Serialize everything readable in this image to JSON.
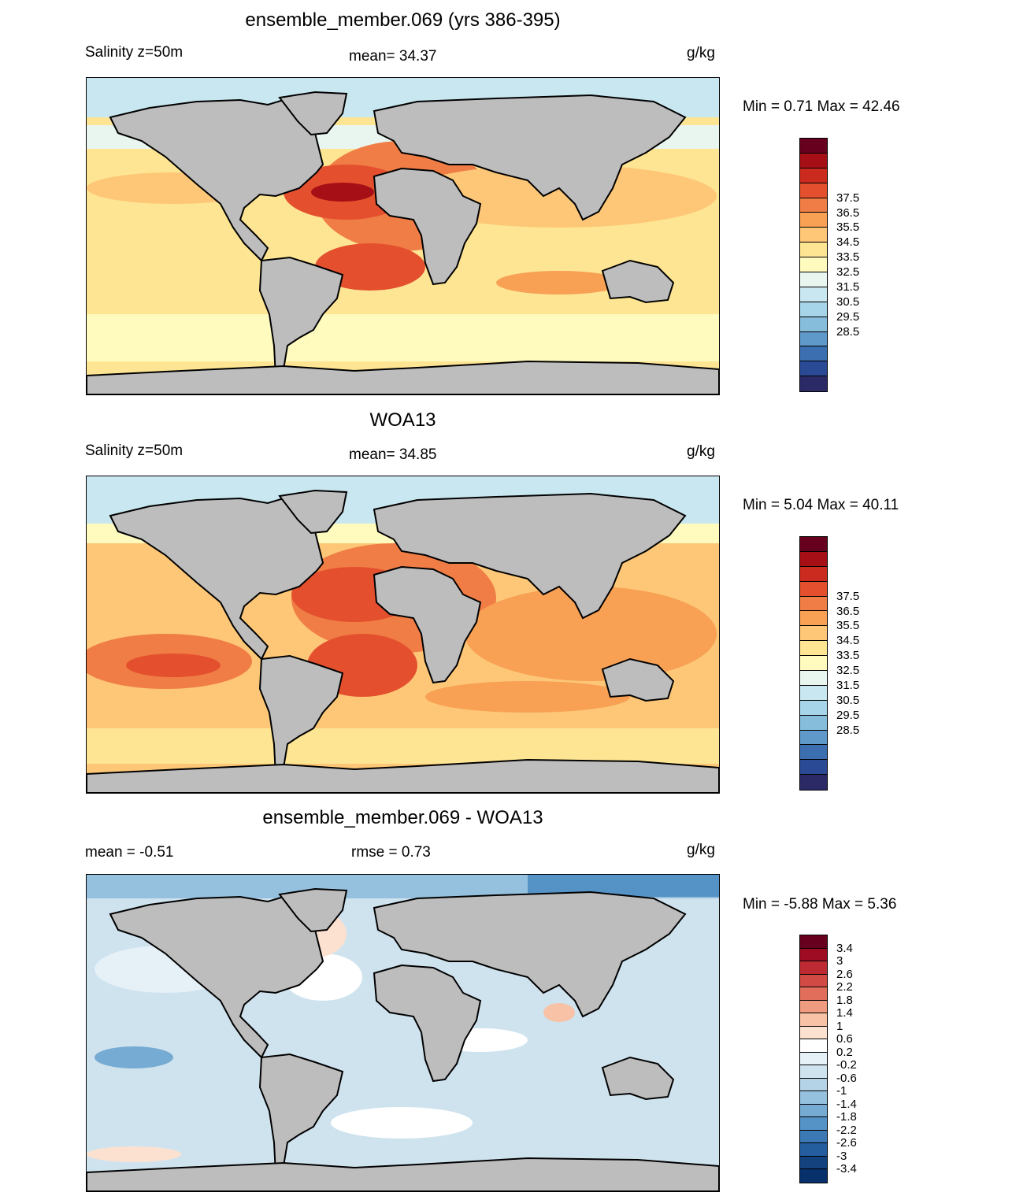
{
  "panels": [
    {
      "id": "model",
      "title": "ensemble_member.069 (yrs 386-395)",
      "left_label": "Salinity z=50m",
      "center_label": "mean=  34.37",
      "units": "g/kg",
      "minmax": "Min =   0.71 Max =  42.46",
      "colorbar": {
        "colors": [
          "#67001f",
          "#a50f15",
          "#cb2a1f",
          "#e4502e",
          "#f07d45",
          "#f8a054",
          "#fdc777",
          "#fee593",
          "#fffbbf",
          "#e9f6f0",
          "#c9e7f0",
          "#a6d4e8",
          "#86bddb",
          "#5f99c9",
          "#3c6fb0",
          "#2b4a95",
          "#2b2a66"
        ],
        "ticks": [
          "37.5",
          "36.5",
          "35.5",
          "34.5",
          "33.5",
          "32.5",
          "31.5",
          "30.5",
          "29.5",
          "28.5"
        ]
      }
    },
    {
      "id": "obs",
      "title": "WOA13",
      "left_label": "Salinity z=50m",
      "center_label": "mean=  34.85",
      "units": "g/kg",
      "minmax": "Min =   5.04 Max =  40.11",
      "colorbar": {
        "colors": [
          "#67001f",
          "#a50f15",
          "#cb2a1f",
          "#e4502e",
          "#f07d45",
          "#f8a054",
          "#fdc777",
          "#fee593",
          "#fffbbf",
          "#e9f6f0",
          "#c9e7f0",
          "#a6d4e8",
          "#86bddb",
          "#5f99c9",
          "#3c6fb0",
          "#2b4a95",
          "#2b2a66"
        ],
        "ticks": [
          "37.5",
          "36.5",
          "35.5",
          "34.5",
          "33.5",
          "32.5",
          "31.5",
          "30.5",
          "29.5",
          "28.5"
        ]
      }
    },
    {
      "id": "diff",
      "title": "ensemble_member.069 - WOA13",
      "left_label": "mean =  -0.51",
      "center_label": "rmse =   0.73",
      "units": "g/kg",
      "minmax": "Min =  -5.88 Max =   5.36",
      "colorbar": {
        "colors": [
          "#67001f",
          "#9e0c24",
          "#bd2a31",
          "#d24a44",
          "#e16e5b",
          "#ef9b7f",
          "#f8c2a6",
          "#fde1d0",
          "#ffffff",
          "#e6f0f7",
          "#cfe3ef",
          "#b4d3e7",
          "#96c1de",
          "#76abd3",
          "#5592c5",
          "#3b78b4",
          "#245e9f",
          "#13427f",
          "#08306b"
        ],
        "ticks": [
          "3.4",
          "3",
          "2.6",
          "2.2",
          "1.8",
          "1.4",
          "1",
          "0.6",
          "0.2",
          "-0.2",
          "-0.6",
          "-1",
          "-1.4",
          "-1.8",
          "-2.2",
          "-2.6",
          "-3",
          "-3.4"
        ]
      }
    }
  ]
}
